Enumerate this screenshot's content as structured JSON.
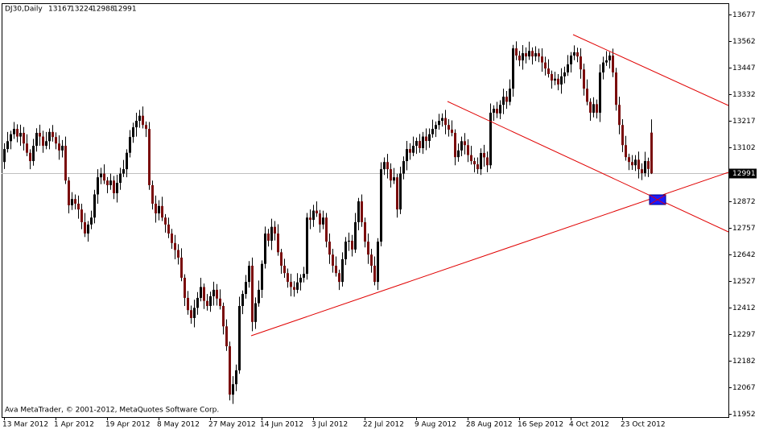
{
  "chart_data": {
    "type": "candlestick",
    "title": "DJ30,Daily",
    "footer": "Ava MetaTrader, © 2001-2012, MetaQuotes Software Corp.",
    "up_color": "#000000",
    "down_color": "#7a0c0c",
    "wick_color": "#000000",
    "ylim": [
      11938,
      13726
    ],
    "yticks": [
      13677,
      13562,
      13447,
      13332,
      13217,
      13102,
      12872,
      12757,
      12642,
      12527,
      12412,
      12297,
      12182,
      12067,
      11952
    ],
    "categories": [
      "13 Mar 2012",
      null,
      null,
      null,
      null,
      null,
      null,
      null,
      null,
      null,
      null,
      null,
      null,
      null,
      null,
      null,
      "1 Apr 2012",
      null,
      null,
      null,
      null,
      null,
      null,
      null,
      null,
      null,
      null,
      null,
      null,
      null,
      null,
      null,
      "19 Apr 2012",
      null,
      null,
      null,
      null,
      null,
      null,
      null,
      null,
      null,
      null,
      null,
      null,
      null,
      null,
      null,
      "8 May 2012",
      null,
      null,
      null,
      null,
      null,
      null,
      null,
      null,
      null,
      null,
      null,
      null,
      null,
      null,
      null,
      "27 May 2012",
      null,
      null,
      null,
      null,
      null,
      null,
      null,
      null,
      null,
      null,
      null,
      null,
      null,
      null,
      null,
      "14 Jun 2012",
      null,
      null,
      null,
      null,
      null,
      null,
      null,
      null,
      null,
      null,
      null,
      null,
      null,
      null,
      null,
      "3 Jul 2012",
      null,
      null,
      null,
      null,
      null,
      null,
      null,
      null,
      null,
      null,
      null,
      null,
      null,
      null,
      null,
      "22 Jul 2012",
      null,
      null,
      null,
      null,
      null,
      null,
      null,
      null,
      null,
      null,
      null,
      null,
      null,
      null,
      null,
      "9 Aug 2012",
      null,
      null,
      null,
      null,
      null,
      null,
      null,
      null,
      null,
      null,
      null,
      null,
      null,
      null,
      null,
      "28 Aug 2012",
      null,
      null,
      null,
      null,
      null,
      null,
      null,
      null,
      null,
      null,
      null,
      null,
      null,
      null,
      null,
      "16 Sep 2012",
      null,
      null,
      null,
      null,
      null,
      null,
      null,
      null,
      null,
      null,
      null,
      null,
      null,
      null,
      null,
      "4 Oct 2012",
      null,
      null,
      null,
      null,
      null,
      null,
      null,
      null,
      null,
      null,
      null,
      null,
      null,
      null,
      null,
      "23 Oct 2012",
      null,
      null,
      null,
      null,
      null,
      null,
      null,
      null,
      null
    ],
    "open": [
      13040,
      13096,
      13130,
      13160,
      13183,
      13150,
      13166,
      13120,
      13080,
      13044,
      13110,
      13166,
      13150,
      13110,
      13130,
      13170,
      13148,
      13120,
      13090,
      13110,
      12960,
      12853,
      12880,
      12860,
      12835,
      12780,
      12731,
      12770,
      12800,
      12900,
      12974,
      12990,
      12960,
      12940,
      12960,
      12905,
      12950,
      12990,
      13009,
      13080,
      13148,
      13190,
      13218,
      13240,
      13200,
      13183,
      12940,
      12860,
      12818,
      12850,
      12800,
      12770,
      12731,
      12690,
      12660,
      12627,
      12540,
      12453,
      12400,
      12366,
      12410,
      12453,
      12500,
      12440,
      12418,
      12460,
      12488,
      12450,
      12418,
      12330,
      12244,
      12035,
      12080,
      12140,
      12418,
      12470,
      12522,
      12592,
      12349,
      12430,
      12488,
      12600,
      12731,
      12700,
      12760,
      12731,
      12650,
      12592,
      12560,
      12522,
      12500,
      12488,
      12520,
      12540,
      12557,
      12800,
      12790,
      12830,
      12818,
      12770,
      12800,
      12696,
      12640,
      12592,
      12560,
      12522,
      12620,
      12696,
      12700,
      12662,
      12780,
      12870,
      12780,
      12696,
      12640,
      12592,
      12522,
      12696,
      13009,
      13040,
      13009,
      12960,
      12974,
      12835,
      12990,
      13044,
      13096,
      13080,
      13110,
      13131,
      13100,
      13150,
      13131,
      13160,
      13183,
      13200,
      13218,
      13230,
      13200,
      13180,
      13166,
      13061,
      13090,
      13130,
      13113,
      13070,
      13044,
      13030,
      13009,
      13079,
      13060,
      13026,
      13253,
      13270,
      13250,
      13287,
      13322,
      13300,
      13357,
      13531,
      13500,
      13479,
      13510,
      13496,
      13520,
      13496,
      13510,
      13496,
      13470,
      13444,
      13420,
      13392,
      13400,
      13375,
      13410,
      13427,
      13462,
      13500,
      13514,
      13496,
      13440,
      13357,
      13300,
      13253,
      13290,
      13253,
      13427,
      13470,
      13479,
      13500,
      13427,
      13287,
      13200,
      13113,
      13061,
      13040,
      13026,
      13050,
      13009,
      12992,
      13044,
      13167
    ],
    "high": [
      13121,
      13170,
      13175,
      13213,
      13203,
      13201,
      13191,
      13160,
      13095,
      13140,
      13186,
      13201,
      13175,
      13170,
      13185,
      13200,
      13168,
      13155,
      13135,
      13150,
      12975,
      12910,
      12900,
      12895,
      12860,
      12820,
      12785,
      12830,
      12920,
      13009,
      13015,
      13030,
      12975,
      12990,
      12980,
      12985,
      13015,
      13049,
      13095,
      13178,
      13210,
      13253,
      13265,
      13280,
      13215,
      13213,
      12960,
      12895,
      12875,
      12890,
      12815,
      12800,
      12751,
      12725,
      12685,
      12667,
      12555,
      12483,
      12420,
      12445,
      12478,
      12540,
      12515,
      12470,
      12480,
      12523,
      12513,
      12490,
      12433,
      12360,
      12264,
      12115,
      12165,
      12458,
      12485,
      12552,
      12612,
      12627,
      12455,
      12528,
      12615,
      12761,
      12751,
      12795,
      12785,
      12771,
      12665,
      12622,
      12580,
      12557,
      12525,
      12560,
      12555,
      12587,
      12820,
      12835,
      12855,
      12870,
      12833,
      12830,
      12820,
      12731,
      12665,
      12632,
      12575,
      12650,
      12716,
      12735,
      12725,
      12820,
      12885,
      12900,
      12800,
      12731,
      12665,
      12632,
      12711,
      13039,
      13060,
      13075,
      13034,
      13014,
      12989,
      13020,
      13064,
      13131,
      13121,
      13150,
      13146,
      13161,
      13170,
      13185,
      13185,
      13223,
      13215,
      13248,
      13250,
      13265,
      13225,
      13220,
      13181,
      13120,
      13150,
      13165,
      13138,
      13110,
      13059,
      13060,
      13099,
      13114,
      13085,
      13293,
      13285,
      13300,
      13307,
      13357,
      13347,
      13397,
      13546,
      13561,
      13520,
      13545,
      13535,
      13560,
      13535,
      13540,
      13530,
      13531,
      13495,
      13484,
      13435,
      13430,
      13420,
      13445,
      13452,
      13502,
      13515,
      13544,
      13534,
      13531,
      13465,
      13397,
      13315,
      13320,
      13310,
      13462,
      13495,
      13519,
      13515,
      13530,
      13447,
      13322,
      13225,
      13153,
      13076,
      13070,
      13070,
      13085,
      13034,
      13084,
      13059,
      13224
    ],
    "low": [
      13010,
      13081,
      13095,
      13140,
      13125,
      13110,
      13090,
      13065,
      13009,
      13024,
      13085,
      13110,
      13080,
      13095,
      13095,
      13128,
      13095,
      13050,
      13060,
      12945,
      12818,
      12833,
      12835,
      12795,
      12750,
      12716,
      12696,
      12750,
      12775,
      12860,
      12944,
      12945,
      12905,
      12920,
      12880,
      12865,
      12920,
      12975,
      12974,
      13060,
      13123,
      13150,
      13188,
      13185,
      13148,
      12920,
      12835,
      12778,
      12788,
      12785,
      12735,
      12711,
      12665,
      12620,
      12597,
      12525,
      12418,
      12380,
      12341,
      12326,
      12380,
      12438,
      12405,
      12398,
      12393,
      12420,
      12420,
      12403,
      12295,
      12224,
      12010,
      11995,
      12050,
      12125,
      12383,
      12450,
      12497,
      12309,
      12319,
      12415,
      12453,
      12580,
      12675,
      12660,
      12701,
      12635,
      12557,
      12540,
      12497,
      12460,
      12458,
      12473,
      12485,
      12520,
      12532,
      12750,
      12760,
      12803,
      12735,
      12750,
      12671,
      12600,
      12562,
      12545,
      12487,
      12502,
      12595,
      12656,
      12632,
      12647,
      12745,
      12760,
      12671,
      12600,
      12562,
      12507,
      12487,
      12676,
      12984,
      12969,
      12930,
      12945,
      12800,
      12815,
      12965,
      13004,
      13050,
      13065,
      13075,
      13080,
      13075,
      13091,
      13101,
      13145,
      13148,
      13180,
      13193,
      13160,
      13150,
      13151,
      13026,
      13041,
      13065,
      13073,
      13040,
      13029,
      12995,
      12989,
      12984,
      13020,
      12996,
      13011,
      13218,
      13230,
      13225,
      13247,
      13270,
      13285,
      13322,
      13480,
      13454,
      13439,
      13466,
      13481,
      13461,
      13476,
      13471,
      13430,
      13414,
      13405,
      13357,
      13372,
      13350,
      13335,
      13380,
      13412,
      13427,
      13480,
      13471,
      13400,
      13327,
      13285,
      13218,
      13233,
      13228,
      13213,
      13397,
      13455,
      13444,
      13407,
      13262,
      13160,
      13083,
      13046,
      13005,
      13006,
      13001,
      12969,
      12962,
      12977,
      12975,
      12988
    ],
    "close": [
      13096,
      13130,
      13160,
      13183,
      13150,
      13166,
      13120,
      13080,
      13044,
      13110,
      13166,
      13150,
      13110,
      13130,
      13170,
      13148,
      13120,
      13090,
      13110,
      12960,
      12853,
      12880,
      12860,
      12835,
      12780,
      12731,
      12770,
      12800,
      12900,
      12974,
      12990,
      12960,
      12940,
      12960,
      12905,
      12950,
      12990,
      13009,
      13080,
      13148,
      13190,
      13218,
      13240,
      13200,
      13183,
      12940,
      12860,
      12818,
      12850,
      12800,
      12770,
      12731,
      12690,
      12660,
      12627,
      12540,
      12453,
      12400,
      12366,
      12410,
      12453,
      12500,
      12440,
      12418,
      12460,
      12488,
      12450,
      12418,
      12330,
      12244,
      12035,
      12080,
      12140,
      12418,
      12470,
      12522,
      12592,
      12349,
      12430,
      12488,
      12600,
      12731,
      12700,
      12760,
      12731,
      12650,
      12592,
      12560,
      12522,
      12500,
      12488,
      12520,
      12540,
      12557,
      12800,
      12790,
      12830,
      12818,
      12770,
      12800,
      12696,
      12640,
      12592,
      12560,
      12522,
      12620,
      12696,
      12700,
      12662,
      12780,
      12870,
      12780,
      12696,
      12640,
      12592,
      12522,
      12696,
      13009,
      13040,
      13009,
      12960,
      12974,
      12835,
      12990,
      13044,
      13096,
      13080,
      13110,
      13131,
      13100,
      13150,
      13131,
      13160,
      13183,
      13200,
      13218,
      13230,
      13200,
      13180,
      13166,
      13061,
      13090,
      13130,
      13113,
      13070,
      13044,
      13030,
      13009,
      13079,
      13060,
      13026,
      13253,
      13270,
      13250,
      13287,
      13322,
      13300,
      13357,
      13531,
      13500,
      13479,
      13510,
      13496,
      13520,
      13496,
      13510,
      13496,
      13470,
      13444,
      13420,
      13392,
      13400,
      13375,
      13410,
      13427,
      13462,
      13500,
      13514,
      13496,
      13440,
      13357,
      13300,
      13253,
      13290,
      13253,
      13427,
      13470,
      13479,
      13500,
      13427,
      13287,
      13200,
      13113,
      13061,
      13040,
      13026,
      13050,
      13009,
      12992,
      13044,
      13010,
      12991
    ]
  }
}
